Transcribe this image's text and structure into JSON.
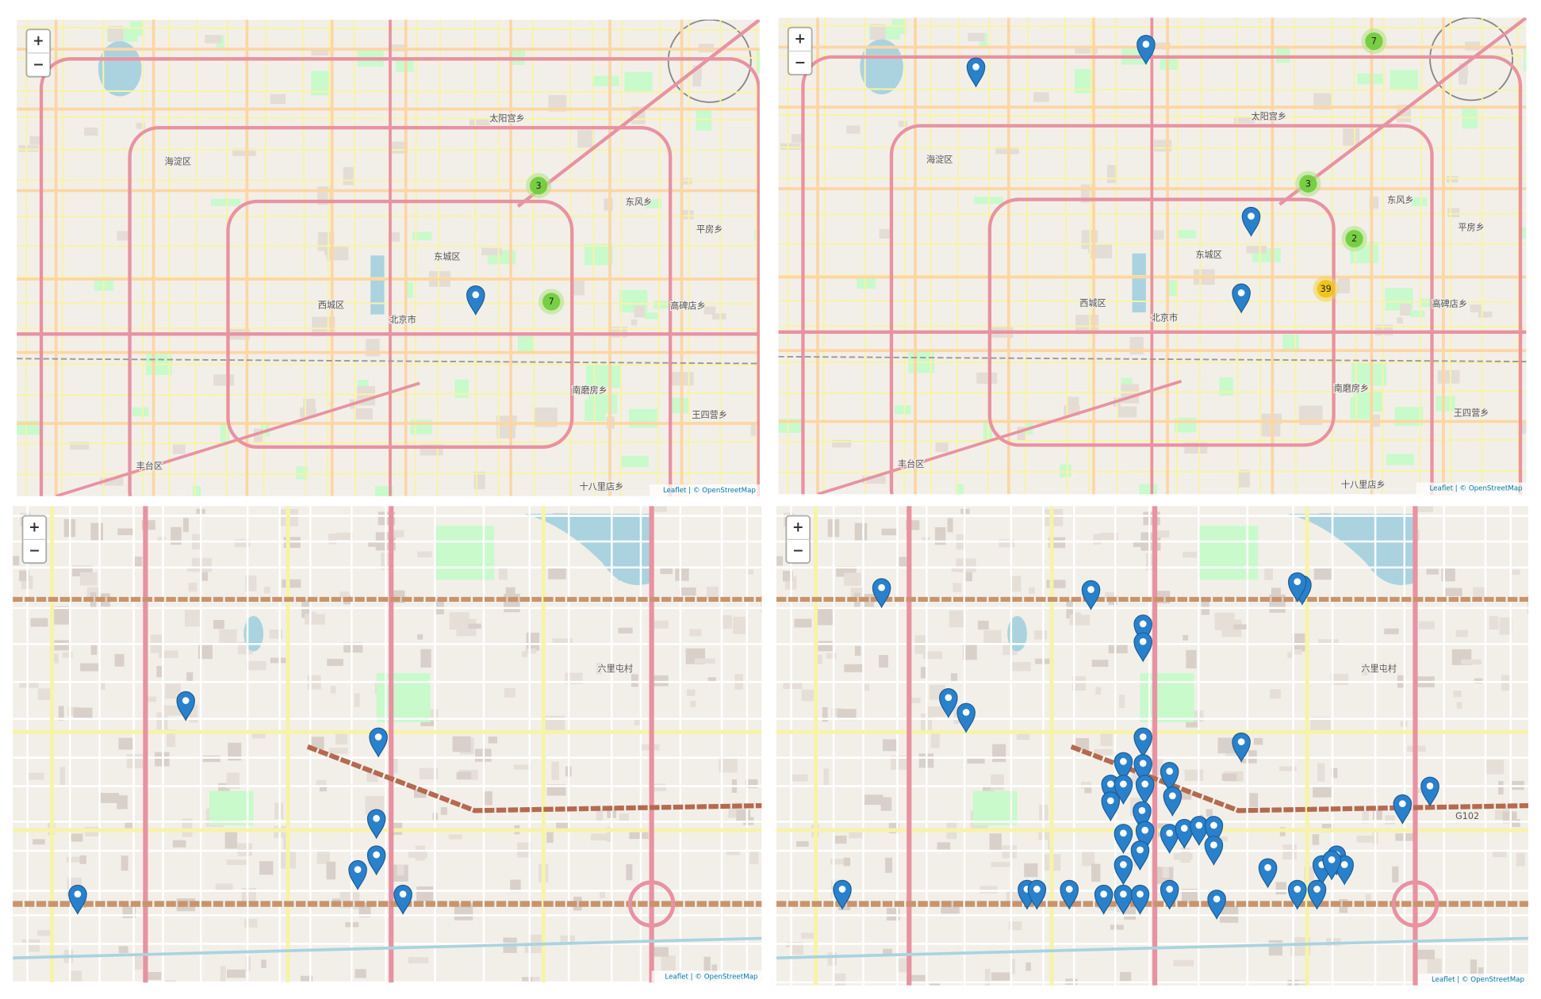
{
  "maps": [
    {
      "zoom_in": "+",
      "zoom_out": "−",
      "attribution": "Leaflet | © OpenStreetMap",
      "clusters": [
        {
          "count": 3
        },
        {
          "count": 7
        }
      ],
      "labels": [
        "海淀区",
        "东城区",
        "西城区",
        "北京市",
        "丰台区",
        "太阳宫乡",
        "东风乡",
        "平房乡",
        "高碑店乡",
        "南磨房乡",
        "王四营乡",
        "十八里店乡"
      ]
    },
    {
      "zoom_in": "+",
      "zoom_out": "−",
      "attribution": "Leaflet | © OpenStreetMap",
      "clusters": [
        {
          "count": 7
        },
        {
          "count": 3
        },
        {
          "count": 2
        },
        {
          "count": 39
        }
      ],
      "labels": [
        "海淀区",
        "东城区",
        "西城区",
        "北京市",
        "丰台区",
        "太阳宫乡",
        "东风乡",
        "平房乡",
        "高碑店乡",
        "南磨房乡",
        "王四营乡",
        "十八里店乡"
      ]
    },
    {
      "zoom_in": "+",
      "zoom_out": "−",
      "attribution": "Leaflet | © OpenStreetMap",
      "clusters": [],
      "labels": [
        "六里屯村"
      ]
    },
    {
      "zoom_in": "+",
      "zoom_out": "−",
      "attribution": "Leaflet | © OpenStreetMap",
      "clusters": [],
      "labels": [
        "六里屯村",
        "G102"
      ]
    }
  ]
}
